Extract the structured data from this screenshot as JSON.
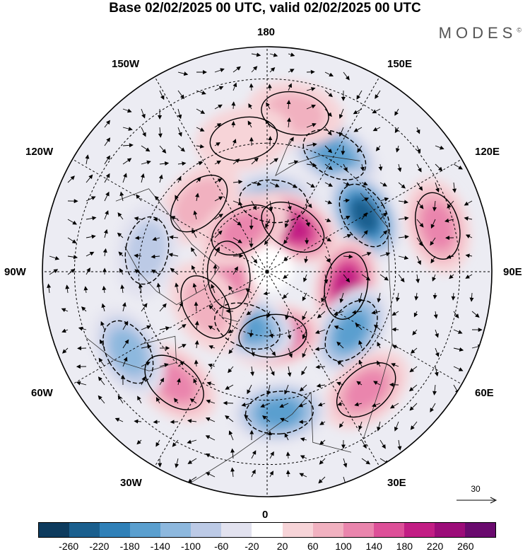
{
  "title": "Base 02/02/2025 00 UTC, valid 02/02/2025 00 UTC",
  "brand": "MODES",
  "brand_mark": "©",
  "longitude_labels": {
    "top": "180",
    "bottom": "0",
    "left": "90W",
    "right": "90E",
    "upper_left_1": "150W",
    "upper_left_2": "120W",
    "upper_right_1": "150E",
    "upper_right_2": "120E",
    "lower_left_1": "60W",
    "lower_left_2": "30W",
    "lower_right_1": "60E",
    "lower_right_2": "30E"
  },
  "reference_vector": {
    "value": "30"
  },
  "colorbar": {
    "colors": [
      "#0d3b5e",
      "#1a5f8e",
      "#2f80b8",
      "#5a9fcf",
      "#8db8de",
      "#bccae6",
      "#e2e2ef",
      "#ffffff",
      "#f7d4d8",
      "#f1b1c0",
      "#ea85ad",
      "#dd4f98",
      "#c21d84",
      "#9c0c79",
      "#6a0a6e"
    ],
    "labels": [
      "-260",
      "-220",
      "-180",
      "-140",
      "-100",
      "-60",
      "-20",
      "20",
      "60",
      "100",
      "140",
      "180",
      "220",
      "260"
    ]
  },
  "anomalies": [
    {
      "lon": 150,
      "colat": 42,
      "value": -150
    },
    {
      "lon": 175,
      "colat": 22,
      "value": -130
    },
    {
      "lon": 120,
      "colat": 35,
      "value": -230
    },
    {
      "lon": 150,
      "colat": 16,
      "value": 180
    },
    {
      "lon": 105,
      "colat": 55,
      "value": 110
    },
    {
      "lon": 80,
      "colat": 25,
      "value": 180
    },
    {
      "lon": 55,
      "colat": 32,
      "value": -170
    },
    {
      "lon": 40,
      "colat": 48,
      "value": 110
    },
    {
      "lon": 5,
      "colat": 20,
      "value": 200
    },
    {
      "lon": -20,
      "colat": 18,
      "value": -150
    },
    {
      "lon": 5,
      "colat": 44,
      "value": -160
    },
    {
      "lon": -40,
      "colat": 45,
      "value": 110
    },
    {
      "lon": -135,
      "colat": 30,
      "value": 90
    },
    {
      "lon": -85,
      "colat": 12,
      "value": 120
    },
    {
      "lon": -150,
      "colat": 15,
      "value": 100
    },
    {
      "lon": -60,
      "colat": 50,
      "value": -100
    },
    {
      "lon": -100,
      "colat": 38,
      "value": -60
    },
    {
      "lon": -60,
      "colat": 22,
      "value": 60
    },
    {
      "lon": 170,
      "colat": 50,
      "value": 60
    },
    {
      "lon": -170,
      "colat": 42,
      "value": 50
    }
  ]
}
